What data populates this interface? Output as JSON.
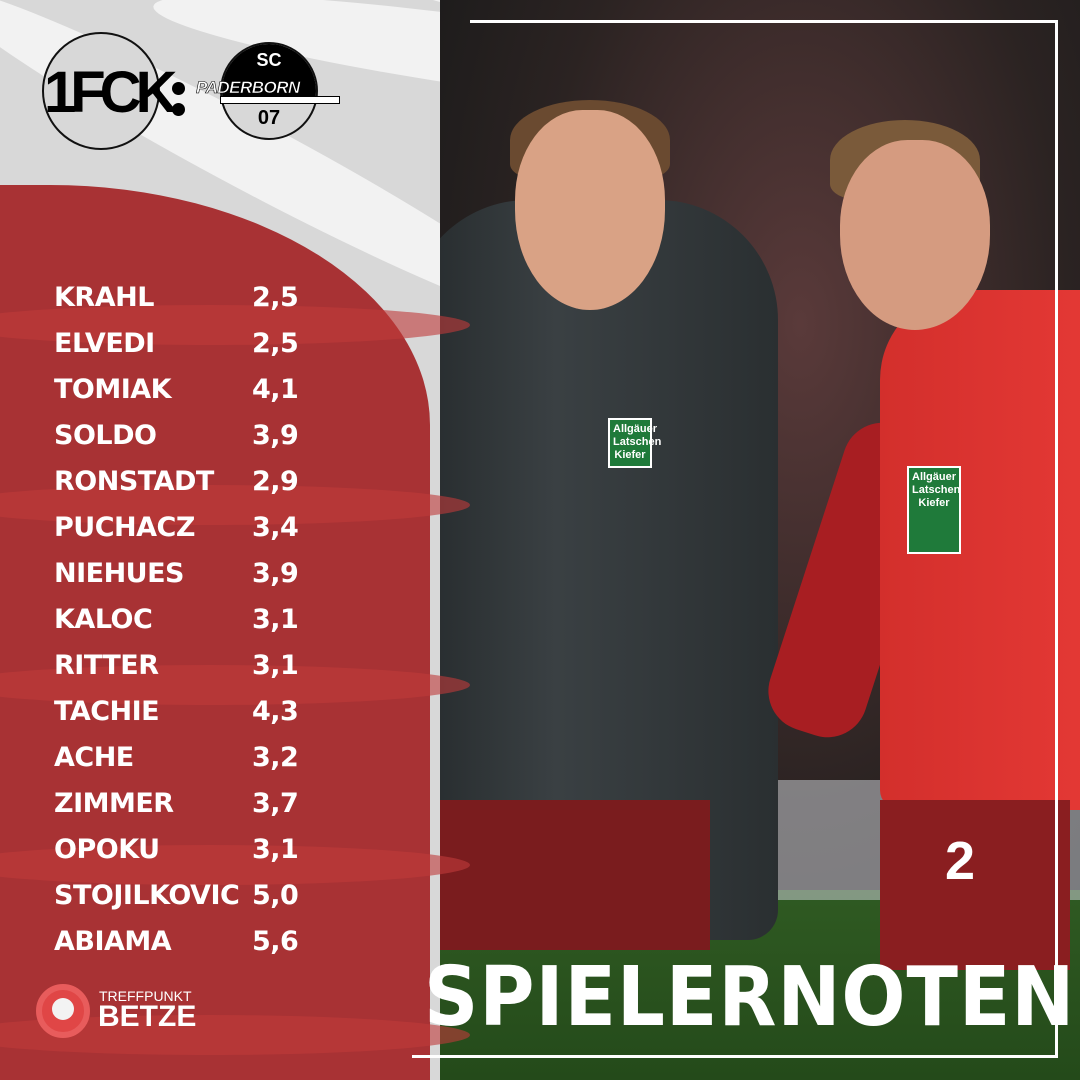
{
  "match": {
    "home_logo_text": "1FCK",
    "away_logo": {
      "top": "SC",
      "name": "PADERBORN",
      "bottom": "07"
    },
    "separator": ":"
  },
  "ratings": [
    {
      "name": "KRAHL",
      "grade": "2,5"
    },
    {
      "name": "ELVEDI",
      "grade": "2,5"
    },
    {
      "name": "TOMIAK",
      "grade": "4,1"
    },
    {
      "name": "SOLDO",
      "grade": "3,9"
    },
    {
      "name": "RONSTADT",
      "grade": "2,9"
    },
    {
      "name": "PUCHACZ",
      "grade": "3,4"
    },
    {
      "name": "NIEHUES",
      "grade": "3,9"
    },
    {
      "name": "KALOC",
      "grade": "3,1"
    },
    {
      "name": "RITTER",
      "grade": "3,1"
    },
    {
      "name": "TACHIE",
      "grade": "4,3"
    },
    {
      "name": "ACHE",
      "grade": "3,2"
    },
    {
      "name": "ZIMMER",
      "grade": "3,7"
    },
    {
      "name": "OPOKU",
      "grade": "3,1"
    },
    {
      "name": "STOJILKOVIC",
      "grade": "5,0"
    },
    {
      "name": "ABIAMA",
      "grade": "5,6"
    }
  ],
  "brand": {
    "line1": "TREFFPUNKT",
    "line2": "BETZE"
  },
  "title": "SPIELERNOTEN",
  "photo": {
    "sponsor": "Allgäuer Latschen Kiefer",
    "shirt_number": "2"
  },
  "colors": {
    "panel_red": "#a83234",
    "grey": "#d8d8d8",
    "text": "#ffffff"
  }
}
